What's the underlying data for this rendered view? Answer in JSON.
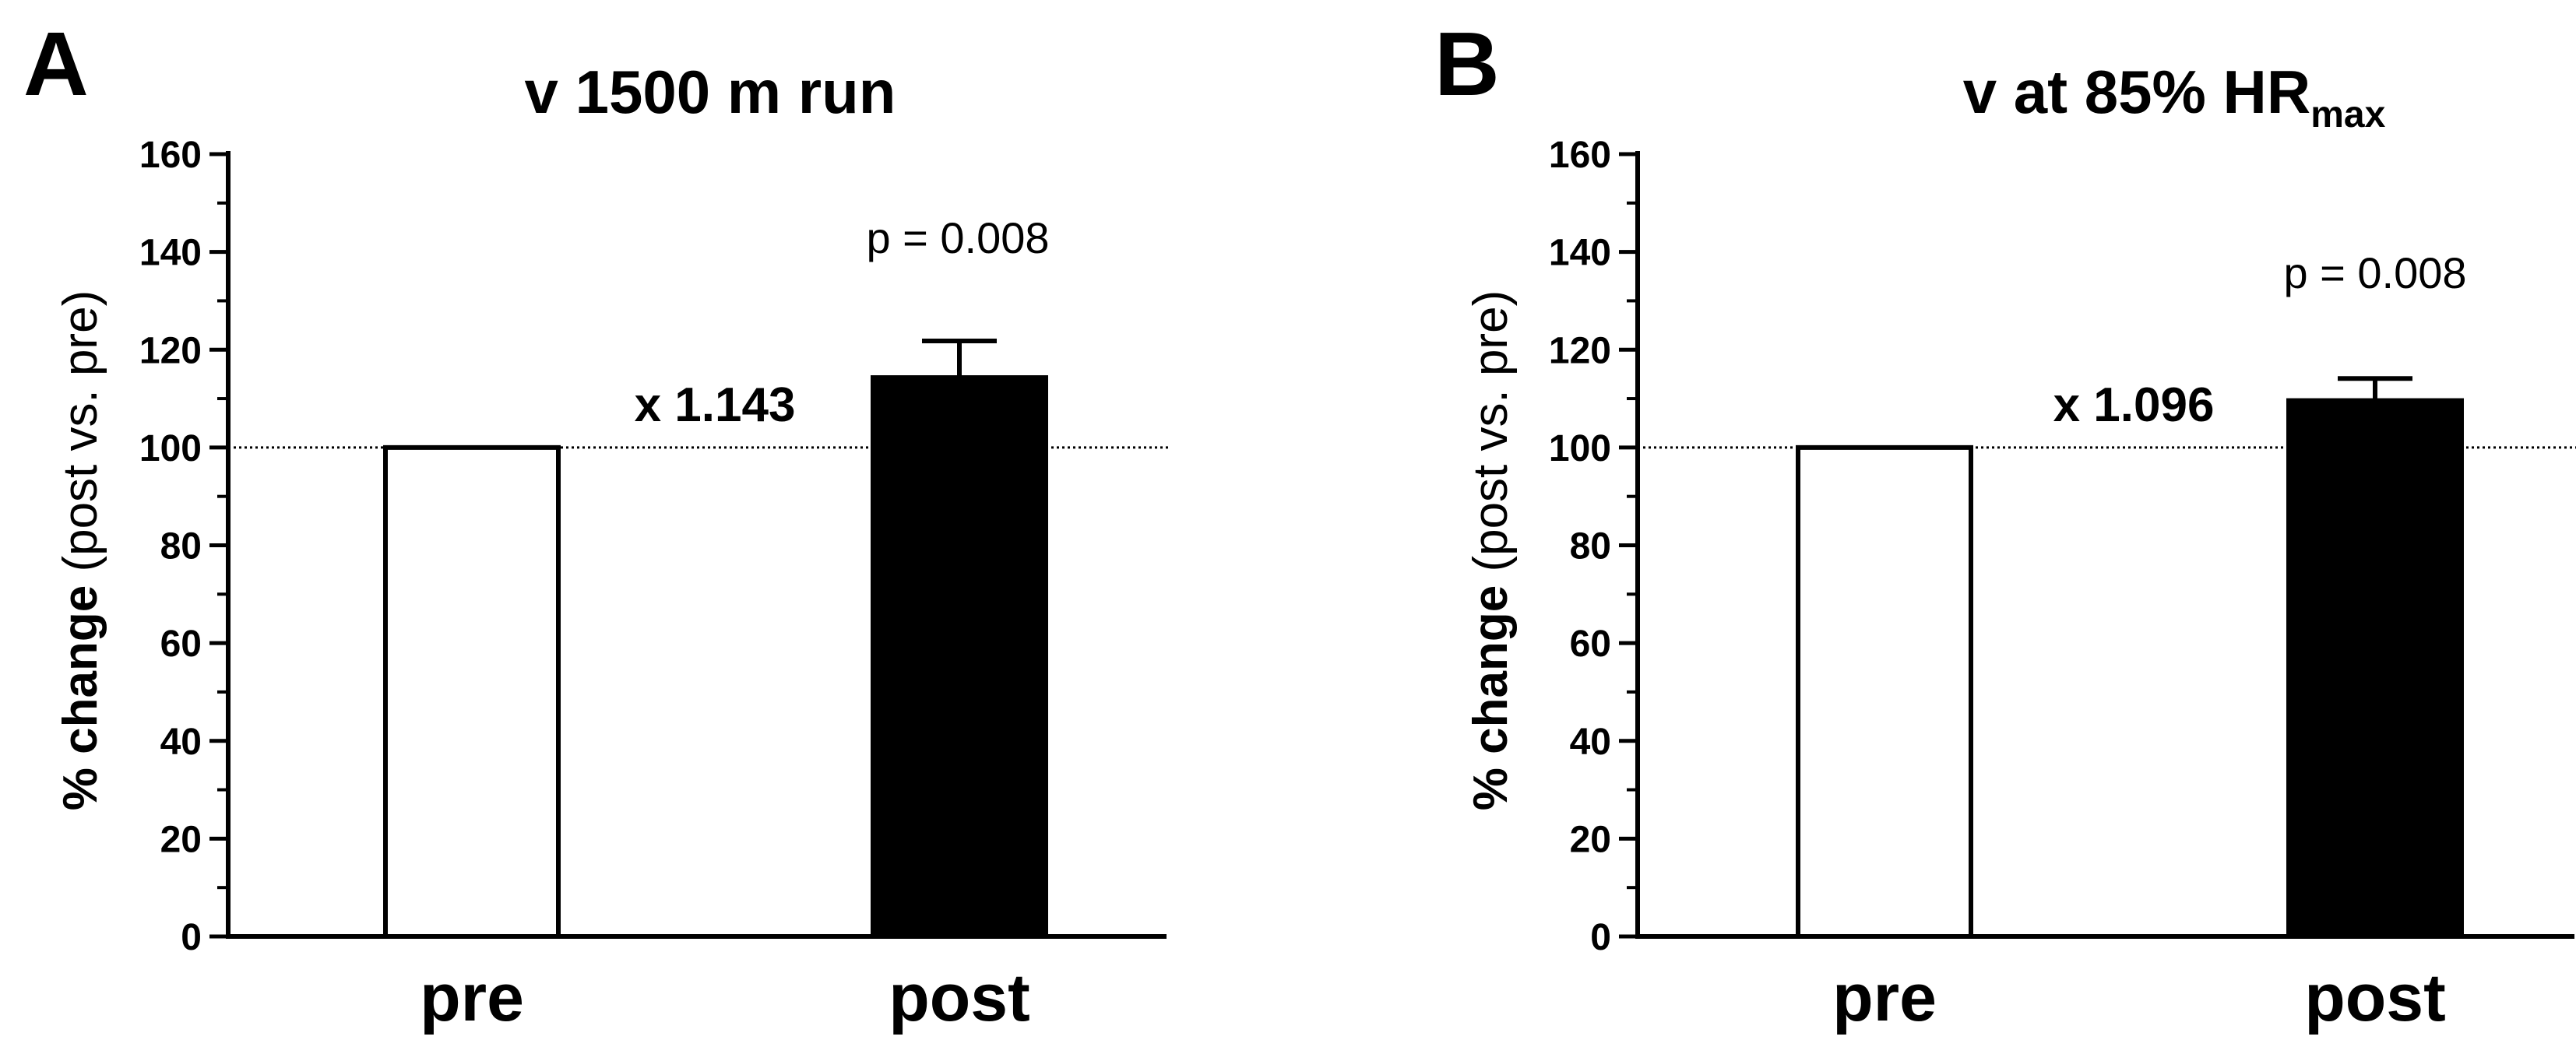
{
  "chart_data": [
    {
      "type": "bar",
      "panel_letter": "A",
      "title": "v 1500 m run",
      "title_sub": "",
      "ylabel_bold": "% change",
      "ylabel_normal": " (post vs. pre)",
      "xlabel": "",
      "categories": [
        "pre",
        "post"
      ],
      "values": [
        100,
        114.3
      ],
      "error_upper": [
        0,
        7.5
      ],
      "bar_fill": [
        "#ffffff",
        "#000000"
      ],
      "ylim": [
        0,
        160
      ],
      "yticks": [
        "0",
        "20",
        "40",
        "60",
        "80",
        "100",
        "120",
        "140",
        "160"
      ],
      "reference_line": 100,
      "annotations": {
        "fold_change": "x 1.143",
        "p_value": "p = 0.008"
      },
      "grid": false,
      "legend": "none"
    },
    {
      "type": "bar",
      "panel_letter": "B",
      "title": "v at 85% HR",
      "title_sub": "max",
      "ylabel_bold": "% change",
      "ylabel_normal": " (post vs. pre)",
      "xlabel": "",
      "categories": [
        "pre",
        "post"
      ],
      "values": [
        100,
        109.6
      ],
      "error_upper": [
        0,
        4.5
      ],
      "bar_fill": [
        "#ffffff",
        "#000000"
      ],
      "ylim": [
        0,
        160
      ],
      "yticks": [
        "0",
        "20",
        "40",
        "60",
        "80",
        "100",
        "120",
        "140",
        "160"
      ],
      "reference_line": 100,
      "annotations": {
        "fold_change": "x 1.096",
        "p_value": "p = 0.008"
      },
      "grid": false,
      "legend": "none"
    }
  ]
}
